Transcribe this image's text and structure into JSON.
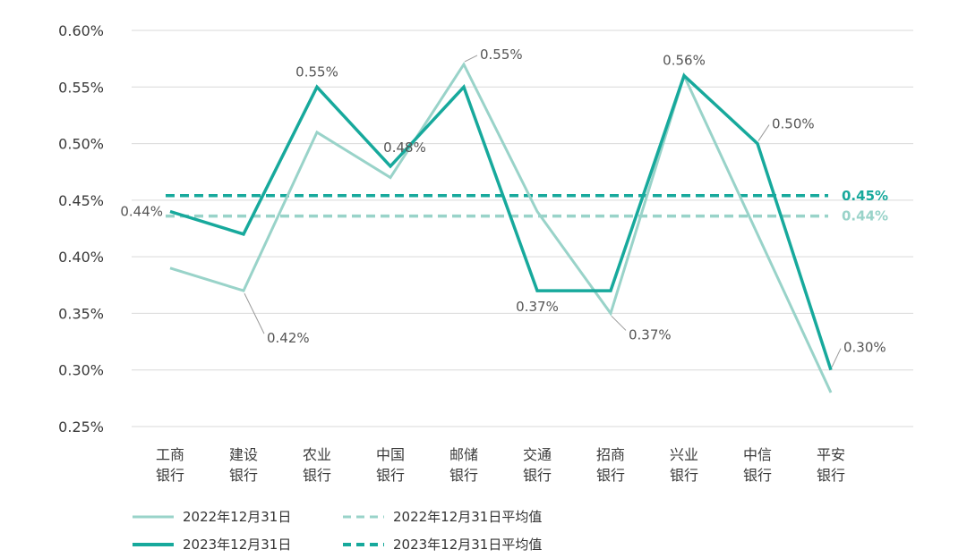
{
  "chart_data": {
    "type": "line",
    "categories": [
      [
        "工商",
        "银行"
      ],
      [
        "建设",
        "银行"
      ],
      [
        "农业",
        "银行"
      ],
      [
        "中国",
        "银行"
      ],
      [
        "邮储",
        "银行"
      ],
      [
        "交通",
        "银行"
      ],
      [
        "招商",
        "银行"
      ],
      [
        "兴业",
        "银行"
      ],
      [
        "中信",
        "银行"
      ],
      [
        "平安",
        "银行"
      ]
    ],
    "yticks": [
      "0.60%",
      "0.55%",
      "0.50%",
      "0.45%",
      "0.40%",
      "0.35%",
      "0.30%",
      "0.25%"
    ],
    "ylim": [
      0.25,
      0.6
    ],
    "grid": true,
    "series": [
      {
        "name": "2022年12月31日",
        "values": [
          0.39,
          0.37,
          0.51,
          0.47,
          0.57,
          0.44,
          0.35,
          0.56,
          0.42,
          0.28
        ],
        "color": "#99d3c9",
        "style": "solid"
      },
      {
        "name": "2023年12月31日",
        "values": [
          0.44,
          0.42,
          0.55,
          0.48,
          0.55,
          0.37,
          0.37,
          0.56,
          0.5,
          0.3
        ],
        "color": "#17a99c",
        "style": "solid"
      }
    ],
    "averages": [
      {
        "name": "2022年12月31日平均值",
        "value": 0.436,
        "label": "0.44%",
        "color": "#99d3c9"
      },
      {
        "name": "2023年12月31日平均值",
        "value": 0.454,
        "label": "0.45%",
        "color": "#17a99c"
      }
    ],
    "annotations": [
      {
        "category_index": 0,
        "value": 0.44,
        "label": "0.44%"
      },
      {
        "category_index": 1,
        "value": 0.37,
        "label": "0.42%"
      },
      {
        "category_index": 2,
        "value": 0.55,
        "label": "0.55%"
      },
      {
        "category_index": 3,
        "value": 0.48,
        "label": "0.48%"
      },
      {
        "category_index": 4,
        "value": 0.57,
        "label": "0.55%"
      },
      {
        "category_index": 5,
        "value": 0.37,
        "label": "0.37%"
      },
      {
        "category_index": 6,
        "value": 0.35,
        "label": "0.37%"
      },
      {
        "category_index": 7,
        "value": 0.56,
        "label": "0.56%"
      },
      {
        "category_index": 8,
        "value": 0.5,
        "label": "0.50%"
      },
      {
        "category_index": 9,
        "value": 0.3,
        "label": "0.30%"
      }
    ],
    "legend": {
      "placement": "bottom-left",
      "items": [
        {
          "label": "2022年12月31日",
          "color": "#99d3c9",
          "style": "solid"
        },
        {
          "label": "2022年12月31日平均值",
          "color": "#99d3c9",
          "style": "dashed"
        },
        {
          "label": "2023年12月31日",
          "color": "#17a99c",
          "style": "solid"
        },
        {
          "label": "2023年12月31日平均值",
          "color": "#17a99c",
          "style": "dashed"
        }
      ]
    }
  }
}
